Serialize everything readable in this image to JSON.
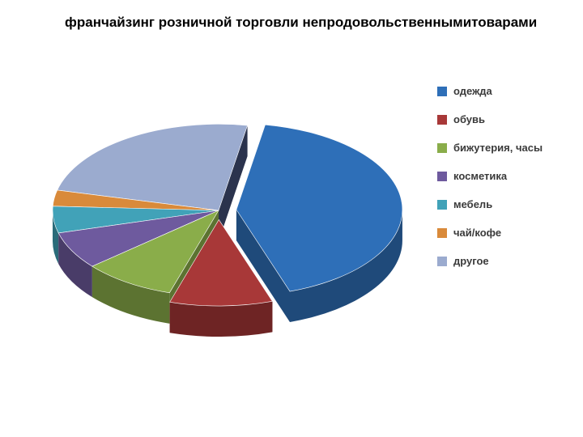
{
  "chart": {
    "type": "pie",
    "title": "франчайзинг розничной торговли непродовольственнымитоварами",
    "title_fontsize": 17,
    "title_color": "#000000",
    "background_color": "#ffffff",
    "slices": [
      {
        "label": "одежда",
        "value": 42,
        "color": "#2e6fb8",
        "side_color": "#1f4a7a",
        "exploded": true
      },
      {
        "label": "обувь",
        "value": 10,
        "color": "#a83838",
        "side_color": "#6e2424",
        "exploded": true
      },
      {
        "label": "бижутерия, часы",
        "value": 9,
        "color": "#8aad4a",
        "side_color": "#5c7331",
        "exploded": false
      },
      {
        "label": "косметика",
        "value": 7,
        "color": "#6e5a9e",
        "side_color": "#493c68",
        "exploded": false
      },
      {
        "label": "мебель",
        "value": 5,
        "color": "#41a2b8",
        "side_color": "#2b6c7a",
        "exploded": false
      },
      {
        "label": "чай/кофе",
        "value": 3,
        "color": "#d98a3a",
        "side_color": "#8f5b27",
        "exploded": false
      },
      {
        "label": "другое",
        "value": 24,
        "color": "#9babcf",
        "side_color": "#2b334d",
        "exploded": false
      }
    ],
    "legend_fontsize": 13,
    "legend_text_color": "#3a3a3a",
    "depth": 38,
    "tilt": 0.52,
    "explode_distance": 22
  }
}
